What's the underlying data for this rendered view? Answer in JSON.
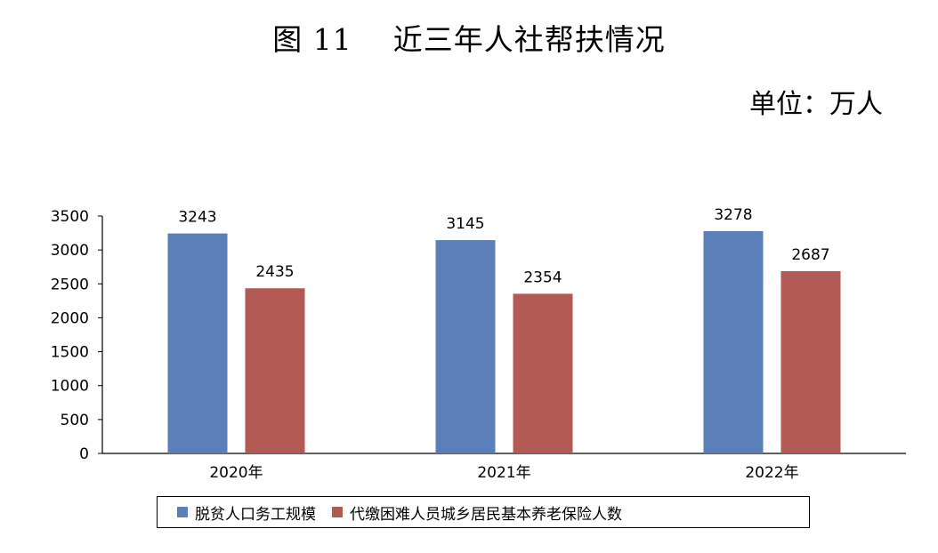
{
  "figure_label": "图 11",
  "unit_label": "单位：万人",
  "chart_data": {
    "type": "bar",
    "title": "近三年人社帮扶情况",
    "categories": [
      "2020年",
      "2021年",
      "2022年"
    ],
    "series": [
      {
        "name": "脱贫人口务工规模",
        "values": [
          3243,
          3145,
          3278
        ],
        "color": "#5b7fb8"
      },
      {
        "name": "代缴困难人员城乡居民基本养老保险人数",
        "values": [
          2435,
          2354,
          2687
        ],
        "color": "#b35a54"
      }
    ],
    "ylim": [
      0,
      3500
    ],
    "yticks": [
      0,
      500,
      1000,
      1500,
      2000,
      2500,
      3000,
      3500
    ],
    "grid": false,
    "legend": "bottom"
  }
}
